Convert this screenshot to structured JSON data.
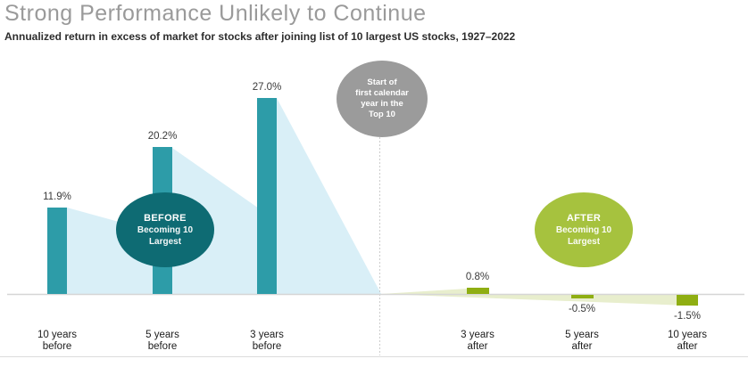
{
  "header": {
    "title": "Strong Performance Unlikely to Continue",
    "subtitle": "Annualized return in excess of market for stocks after joining list of 10 largest US stocks, 1927–2022"
  },
  "chart_data": {
    "type": "bar",
    "title": "Strong Performance Unlikely to Continue",
    "subtitle": "Annualized return in excess of market for stocks after joining list of 10 largest US stocks, 1927–2022",
    "categories": [
      "10 years before",
      "5 years before",
      "3 years before",
      "3 years after",
      "5 years after",
      "10 years after"
    ],
    "values": [
      11.9,
      20.2,
      27.0,
      0.8,
      -0.5,
      -1.5
    ],
    "value_labels": [
      "11.9%",
      "20.2%",
      "27.0%",
      "0.8%",
      "-0.5%",
      "-1.5%"
    ],
    "groups": [
      "before",
      "before",
      "before",
      "after",
      "after",
      "after"
    ],
    "ylim": [
      -3,
      30
    ],
    "grid": false,
    "legend": false
  },
  "bars": [
    {
      "label_line1": "10 years",
      "label_line2": "before",
      "value": 11.9,
      "value_label": "11.9%",
      "group": "before"
    },
    {
      "label_line1": "5 years",
      "label_line2": "before",
      "value": 20.2,
      "value_label": "20.2%",
      "group": "before"
    },
    {
      "label_line1": "3 years",
      "label_line2": "before",
      "value": 27.0,
      "value_label": "27.0%",
      "group": "before"
    },
    {
      "label_line1": "3 years",
      "label_line2": "after",
      "value": 0.8,
      "value_label": "0.8%",
      "group": "after"
    },
    {
      "label_line1": "5 years",
      "label_line2": "after",
      "value": -0.5,
      "value_label": "-0.5%",
      "group": "after"
    },
    {
      "label_line1": "10 years",
      "label_line2": "after",
      "value": -1.5,
      "value_label": "-1.5%",
      "group": "after"
    }
  ],
  "annotations": {
    "start_bubble": {
      "line1": "Start of",
      "line2": "first calendar",
      "line3": "year in the",
      "line4": "Top 10"
    },
    "before_bubble": {
      "title": "BEFORE",
      "line1": "Becoming 10",
      "line2": "Largest"
    },
    "after_bubble": {
      "title": "AFTER",
      "line1": "Becoming 10",
      "line2": "Largest"
    }
  },
  "colors": {
    "teal_bar": "#2D9CA8",
    "teal_dark": "#0E6B73",
    "olive_bar": "#8FAE12",
    "olive_light": "#A6C23E",
    "gray_bubble": "#9B9B9B",
    "fan_cyan": "#D9EFF7",
    "fan_olive": "#E8EECD",
    "baseline": "#D6D6D6",
    "title_gray": "#9A9A9A"
  }
}
